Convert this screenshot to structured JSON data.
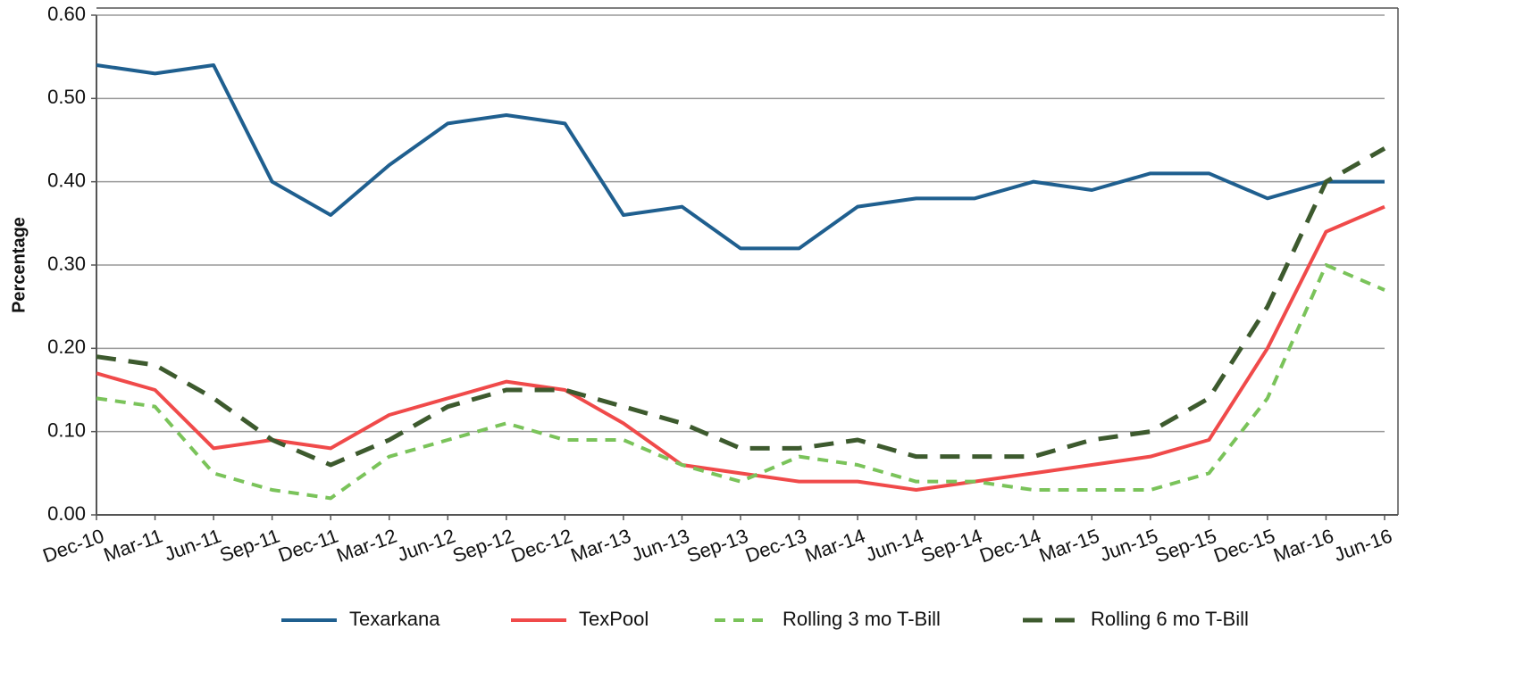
{
  "chart_data": {
    "type": "line",
    "y_label": "Percentage",
    "categories": [
      "Dec-10",
      "Mar-11",
      "Jun-11",
      "Sep-11",
      "Dec-11",
      "Mar-12",
      "Jun-12",
      "Sep-12",
      "Dec-12",
      "Mar-13",
      "Jun-13",
      "Sep-13",
      "Dec-13",
      "Mar-14",
      "Jun-14",
      "Sep-14",
      "Dec-14",
      "Mar-15",
      "Jun-15",
      "Sep-15",
      "Dec-15",
      "Mar-16",
      "Jun-16"
    ],
    "series": [
      {
        "name": "Texarkana",
        "color": "#1f5f8f",
        "values": [
          0.54,
          0.53,
          0.54,
          0.4,
          0.36,
          0.42,
          0.47,
          0.48,
          0.47,
          0.36,
          0.37,
          0.32,
          0.32,
          0.37,
          0.38,
          0.38,
          0.4,
          0.39,
          0.41,
          0.41,
          0.38,
          0.4,
          0.4
        ]
      },
      {
        "name": "TexPool",
        "color": "#f04a4a",
        "values": [
          0.17,
          0.15,
          0.08,
          0.09,
          0.08,
          0.12,
          0.14,
          0.16,
          0.15,
          0.11,
          0.06,
          0.05,
          0.04,
          0.04,
          0.03,
          0.04,
          0.05,
          0.06,
          0.07,
          0.09,
          0.2,
          0.34,
          0.37
        ]
      },
      {
        "name": "Rolling 3 mo T-Bill",
        "color": "#7ac35a",
        "values": [
          0.14,
          0.13,
          0.05,
          0.03,
          0.02,
          0.07,
          0.09,
          0.11,
          0.09,
          0.09,
          0.06,
          0.04,
          0.07,
          0.06,
          0.04,
          0.04,
          0.03,
          0.03,
          0.03,
          0.05,
          0.14,
          0.3,
          0.27
        ]
      },
      {
        "name": "Rolling 6 mo T-Bill",
        "color": "#3d5a2e",
        "values": [
          0.19,
          0.18,
          0.14,
          0.09,
          0.06,
          0.09,
          0.13,
          0.15,
          0.15,
          0.13,
          0.11,
          0.08,
          0.08,
          0.09,
          0.07,
          0.07,
          0.07,
          0.09,
          0.1,
          0.14,
          0.25,
          0.4,
          0.44
        ]
      }
    ],
    "ylim": [
      0,
      0.6
    ],
    "yticks": [
      {
        "value": 0,
        "label": "0.00"
      },
      {
        "value": 0.1,
        "label": "0.10"
      },
      {
        "value": 0.2,
        "label": "0.20"
      },
      {
        "value": 0.3,
        "label": "0.30"
      },
      {
        "value": 0.4,
        "label": "0.40"
      },
      {
        "value": 0.5,
        "label": "0.50"
      },
      {
        "value": 0.6,
        "label": "0.60"
      }
    ],
    "grid": true
  }
}
